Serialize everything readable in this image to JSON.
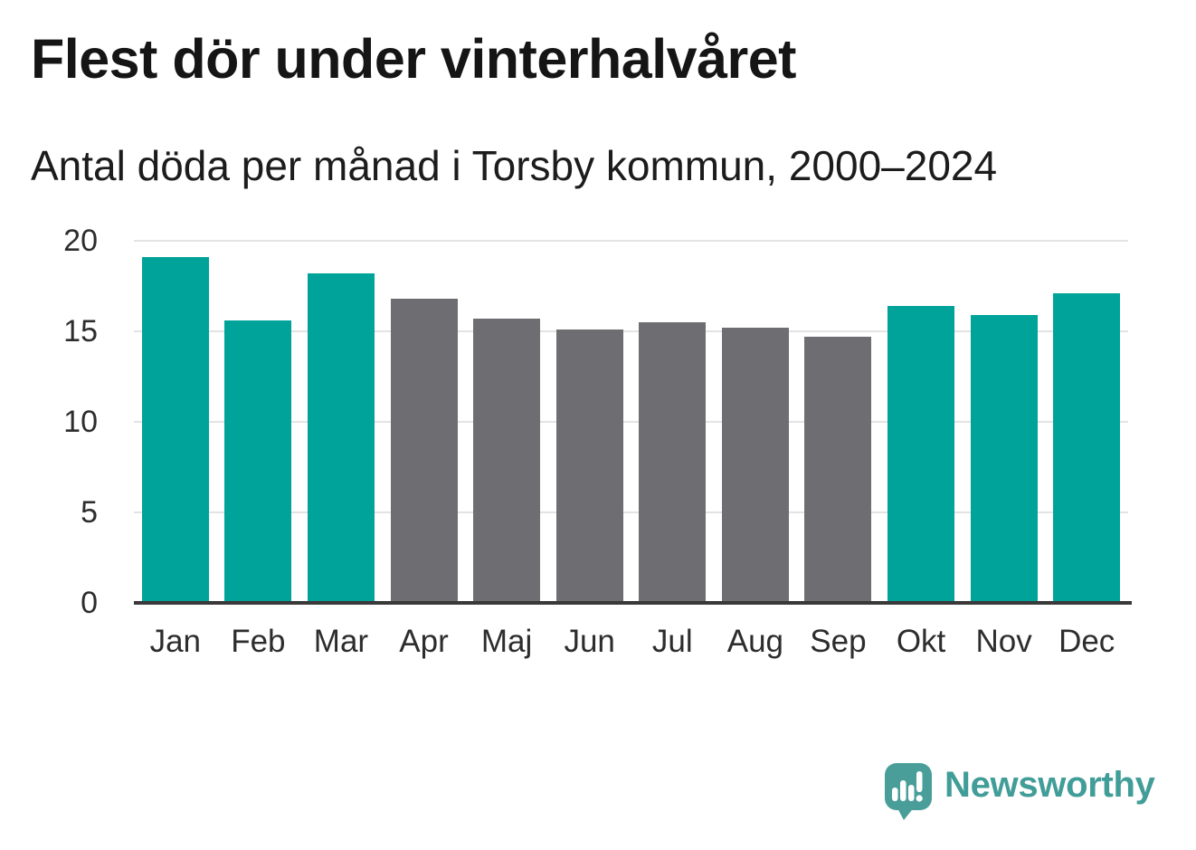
{
  "header": {
    "title": "Flest dör under vinterhalvåret",
    "subtitle": "Antal döda per månad i Torsby kommun, 2000–2024"
  },
  "chart_data": {
    "type": "bar",
    "categories": [
      "Jan",
      "Feb",
      "Mar",
      "Apr",
      "Maj",
      "Jun",
      "Jul",
      "Aug",
      "Sep",
      "Okt",
      "Nov",
      "Dec"
    ],
    "values": [
      19.1,
      15.6,
      18.2,
      16.8,
      15.7,
      15.1,
      15.5,
      15.2,
      14.7,
      16.4,
      15.9,
      17.1
    ],
    "bar_colors": [
      "teal",
      "teal",
      "teal",
      "gray",
      "gray",
      "gray",
      "gray",
      "gray",
      "gray",
      "teal",
      "teal",
      "teal"
    ],
    "title": "Flest dör under vinterhalvåret",
    "subtitle": "Antal döda per månad i Torsby kommun, 2000–2024",
    "xlabel": "",
    "ylabel": "",
    "ylim": [
      0,
      20
    ],
    "yticks": [
      0,
      5,
      10,
      15,
      20
    ],
    "grid": true,
    "legend_position": "none",
    "highlight_color": "#00a39a",
    "neutral_color": "#6e6d72"
  },
  "footer": {
    "brand": "Newsworthy",
    "brand_color": "#419d98"
  }
}
